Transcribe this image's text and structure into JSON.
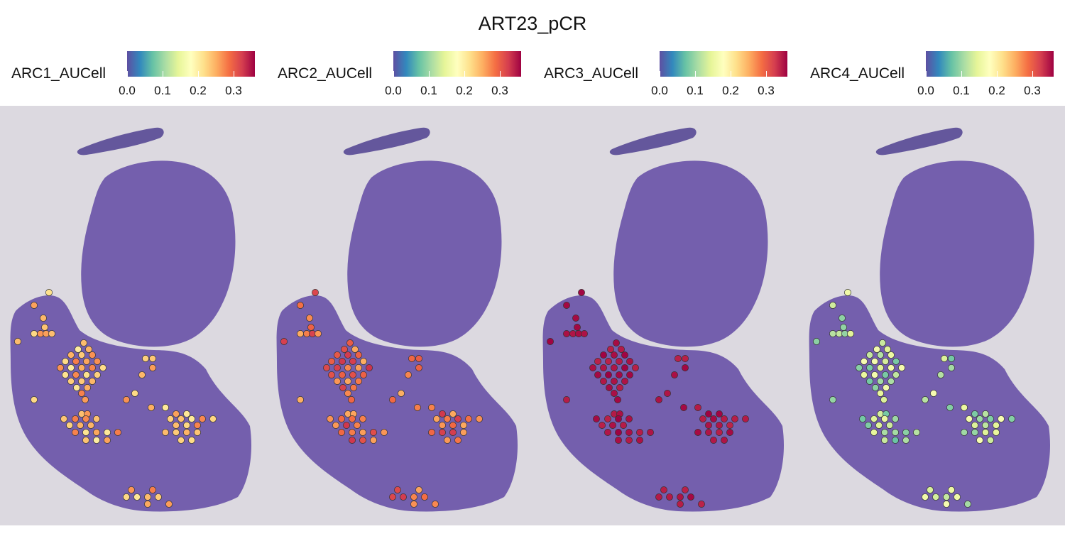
{
  "title": "ART23_pCR",
  "colormap": [
    "#5e4fa2",
    "#3288bd",
    "#66c2a5",
    "#abdda4",
    "#e6f598",
    "#ffffbf",
    "#fee08b",
    "#fdae61",
    "#f46d43",
    "#d53e4f",
    "#9e0142"
  ],
  "tissue_colors": {
    "background": "#dcd9e0",
    "tissue": "#6a55a8",
    "tissue_dark": "#4f3f8f"
  },
  "chart_data": [
    {
      "type": "scatter",
      "name": "ARC1_AUCell",
      "legend_label": "ARC1_AUCell",
      "vlim": [
        0,
        0.36
      ],
      "ticks": [
        "0.0",
        "0.1",
        "0.2",
        "0.3"
      ],
      "tick_values": [
        0,
        0.1,
        0.2,
        0.3
      ],
      "base": 0.24,
      "amp": 0.04
    },
    {
      "type": "scatter",
      "name": "ARC2_AUCell",
      "legend_label": "ARC2_AUCell",
      "vlim": [
        0,
        0.36
      ],
      "ticks": [
        "0.0",
        "0.1",
        "0.2",
        "0.3"
      ],
      "tick_values": [
        0,
        0.1,
        0.2,
        0.3
      ],
      "base": 0.29,
      "amp": 0.04
    },
    {
      "type": "scatter",
      "name": "ARC3_AUCell",
      "legend_label": "ARC3_AUCell",
      "vlim": [
        0,
        0.36
      ],
      "ticks": [
        "0.0",
        "0.1",
        "0.2",
        "0.3"
      ],
      "tick_values": [
        0,
        0.1,
        0.2,
        0.3
      ],
      "base": 0.35,
      "amp": 0.01
    },
    {
      "type": "scatter",
      "name": "ARC4_AUCell",
      "legend_label": "ARC4_AUCell",
      "vlim": [
        0,
        0.36
      ],
      "ticks": [
        "0.0",
        "0.1",
        "0.2",
        "0.3"
      ],
      "tick_values": [
        0,
        0.1,
        0.2,
        0.3
      ],
      "base": 0.12,
      "amp": 0.05
    }
  ]
}
